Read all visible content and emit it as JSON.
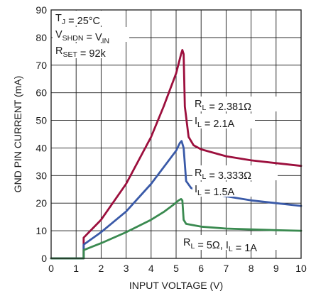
{
  "chart_data": {
    "type": "line",
    "xlabel": "INPUT VOLTAGE (V)",
    "ylabel": "GND PIN CURRENT (mA)",
    "xlim": [
      0,
      10
    ],
    "ylim": [
      0,
      90
    ],
    "x_ticks": [
      "0",
      "1",
      "2",
      "3",
      "4",
      "5",
      "6",
      "7",
      "8",
      "9",
      "10"
    ],
    "y_ticks": [
      "0",
      "10",
      "20",
      "30",
      "40",
      "50",
      "60",
      "70",
      "80",
      "90"
    ],
    "grid": true,
    "conditions": [
      {
        "main": "T",
        "sub": "J",
        "rest": " = 25°C"
      },
      {
        "main": "V",
        "sub": "SHDN",
        "rest": " = V",
        "sub2": "IN"
      },
      {
        "main": "R",
        "sub": "SET",
        "rest": " = 92k"
      }
    ],
    "series": [
      {
        "color": "#9c0f3d",
        "label_lines": [
          {
            "main": "R",
            "sub": "L",
            "rest": " = 2.381Ω"
          },
          {
            "main": "I",
            "sub": "L",
            "rest": " = 2.1A"
          }
        ],
        "x": [
          0,
          1.25,
          1.3,
          1.3,
          2,
          3,
          4,
          4.5,
          5,
          5.2,
          5.25,
          5.3,
          5.35,
          5.5,
          5.7,
          6,
          7,
          8,
          9,
          10
        ],
        "y": [
          0,
          0,
          0,
          7.5,
          14,
          27,
          44,
          55,
          67,
          74,
          75.5,
          74,
          55,
          44,
          41,
          39.5,
          37,
          35.5,
          34.5,
          33.5
        ]
      },
      {
        "color": "#3a5aa8",
        "label_lines": [
          {
            "main": "R",
            "sub": "L",
            "rest": " = 3.333Ω"
          },
          {
            "main": "I",
            "sub": "L",
            "rest": " = 1.5A"
          }
        ],
        "x": [
          0,
          1.25,
          1.3,
          1.3,
          2,
          3,
          4,
          4.5,
          5,
          5.15,
          5.22,
          5.3,
          5.4,
          5.6,
          6,
          7,
          8,
          9,
          10
        ],
        "y": [
          0,
          0,
          0,
          5,
          9.5,
          17,
          27,
          33,
          39,
          41.8,
          42.5,
          40,
          28,
          25.5,
          24,
          22.5,
          21,
          20,
          19
        ]
      },
      {
        "color": "#3a8a50",
        "label_lines": [
          {
            "main": "R",
            "sub": "L",
            "rest": " = 5Ω, I",
            "sub2": "L",
            "rest2": " = 1A"
          }
        ],
        "x": [
          0,
          1.25,
          1.3,
          1.3,
          2,
          3,
          4,
          4.5,
          4.9,
          5.1,
          5.2,
          5.25,
          5.3,
          5.4,
          6,
          7,
          8,
          9,
          10
        ],
        "y": [
          0,
          0,
          0,
          3,
          5.5,
          9.5,
          14,
          16.8,
          19.5,
          21,
          21.5,
          21,
          14,
          12.5,
          11.5,
          10.8,
          10.5,
          10.2,
          10
        ]
      }
    ]
  }
}
